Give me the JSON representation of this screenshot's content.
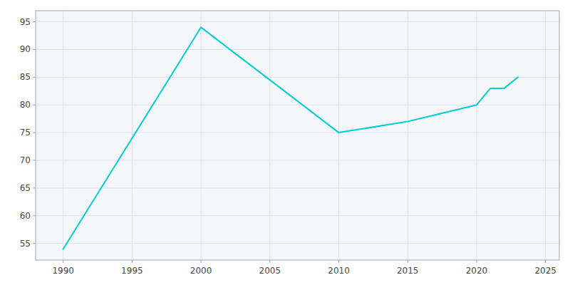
{
  "chart_data": {
    "type": "line",
    "x": [
      1990,
      2000,
      2010,
      2015,
      2020,
      2021,
      2022,
      2023
    ],
    "values": [
      54,
      94,
      75,
      77,
      80,
      83,
      83,
      85
    ],
    "color": "#00CED1",
    "xlim": [
      1988,
      2026
    ],
    "ylim": [
      52,
      97
    ],
    "xticks": [
      1990,
      1995,
      2000,
      2005,
      2010,
      2015,
      2020,
      2025
    ],
    "yticks": [
      55,
      60,
      65,
      70,
      75,
      80,
      85,
      90,
      95
    ],
    "grid": true
  }
}
